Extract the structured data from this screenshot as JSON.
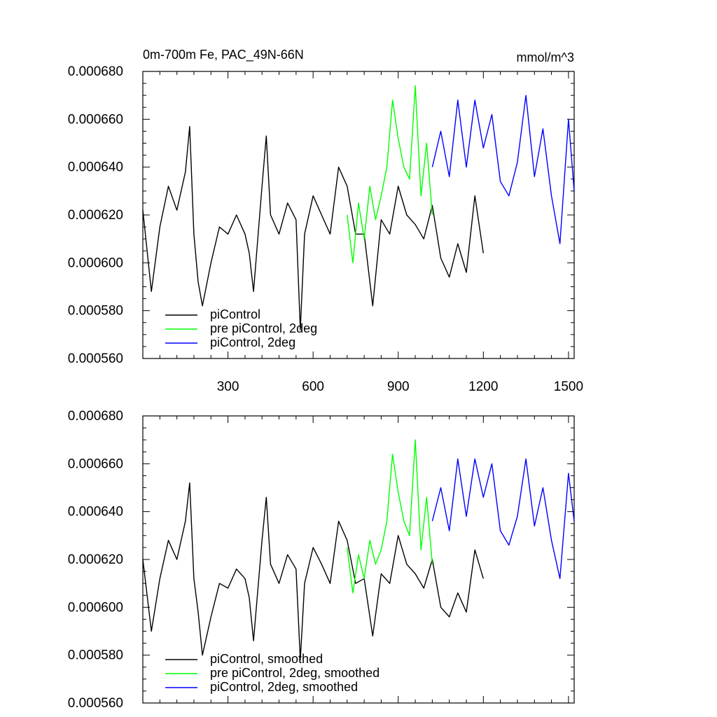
{
  "figure": {
    "title": "0m-700m Fe, PAC_49N-66N",
    "units": "mmol/m^3"
  },
  "colors": {
    "piControl": "#000000",
    "pre_piControl_2deg": "#00ff00",
    "piControl_2deg": "#0000ff"
  },
  "chart_data": [
    {
      "type": "line",
      "title": "0m-700m Fe, PAC_49N-66N",
      "units": "mmol/m^3",
      "xlim": [
        0,
        1520
      ],
      "ylim": [
        0.00056,
        0.00068
      ],
      "xticks": [
        300,
        600,
        900,
        1200,
        1500
      ],
      "xtick_labels": [
        "300",
        "600",
        "900",
        "1200",
        "1500"
      ],
      "yticks": [
        0.00056,
        0.00058,
        0.0006,
        0.00062,
        0.00064,
        0.00066,
        0.00068
      ],
      "ytick_labels": [
        "0.000560",
        "0.000580",
        "0.000600",
        "0.000620",
        "0.000640",
        "0.000660",
        "0.000680"
      ],
      "legend": "bottom-left",
      "series": [
        {
          "name": "piControl",
          "color": "#000000",
          "x": [
            0,
            30,
            60,
            90,
            120,
            150,
            165,
            180,
            195,
            210,
            240,
            270,
            300,
            330,
            360,
            375,
            390,
            420,
            435,
            450,
            480,
            510,
            540,
            555,
            570,
            600,
            630,
            660,
            690,
            720,
            750,
            780,
            810,
            840,
            870,
            900,
            930,
            960,
            990,
            1020,
            1050,
            1080,
            1110,
            1140,
            1170,
            1200
          ],
          "y": [
            0.000622,
            0.000588,
            0.000615,
            0.000632,
            0.000622,
            0.000638,
            0.000657,
            0.000612,
            0.000592,
            0.000582,
            0.0006,
            0.000615,
            0.000612,
            0.00062,
            0.000612,
            0.000604,
            0.000588,
            0.000632,
            0.000653,
            0.00062,
            0.000612,
            0.000625,
            0.000618,
            0.000572,
            0.000612,
            0.000628,
            0.00062,
            0.000612,
            0.00064,
            0.000632,
            0.000612,
            0.000612,
            0.000582,
            0.000618,
            0.000612,
            0.000632,
            0.00062,
            0.000616,
            0.00061,
            0.000624,
            0.000602,
            0.000594,
            0.000608,
            0.000596,
            0.000628,
            0.000604
          ]
        },
        {
          "name": "pre piControl, 2deg",
          "color": "#00ff00",
          "x": [
            720,
            740,
            760,
            780,
            800,
            820,
            840,
            860,
            880,
            900,
            920,
            940,
            960,
            980,
            1000,
            1020
          ],
          "y": [
            0.00062,
            0.0006,
            0.000625,
            0.00061,
            0.000632,
            0.000618,
            0.000628,
            0.00064,
            0.000668,
            0.000652,
            0.00064,
            0.000635,
            0.000674,
            0.000628,
            0.00065,
            0.00062
          ]
        },
        {
          "name": "piControl, 2deg",
          "color": "#0000ff",
          "x": [
            1020,
            1050,
            1080,
            1110,
            1140,
            1170,
            1200,
            1230,
            1260,
            1290,
            1320,
            1350,
            1380,
            1410,
            1440,
            1470,
            1500,
            1520
          ],
          "y": [
            0.00064,
            0.000655,
            0.000636,
            0.000668,
            0.00064,
            0.000668,
            0.000648,
            0.000662,
            0.000634,
            0.000628,
            0.000642,
            0.00067,
            0.000636,
            0.000656,
            0.000628,
            0.000608,
            0.00066,
            0.00063
          ]
        }
      ]
    },
    {
      "type": "line",
      "title": "",
      "xlim": [
        0,
        1520
      ],
      "ylim": [
        0.00056,
        0.00068
      ],
      "xticks": [
        300,
        600,
        900,
        1200,
        1500
      ],
      "yticks": [
        0.00056,
        0.00058,
        0.0006,
        0.00062,
        0.00064,
        0.00066,
        0.00068
      ],
      "ytick_labels": [
        "0.000560",
        "0.000580",
        "0.000600",
        "0.000620",
        "0.000640",
        "0.000660",
        "0.000680"
      ],
      "legend": "bottom-left",
      "series": [
        {
          "name": "piControl, smoothed",
          "color": "#000000",
          "x": [
            0,
            30,
            60,
            90,
            120,
            150,
            165,
            180,
            195,
            210,
            240,
            270,
            300,
            330,
            360,
            375,
            390,
            420,
            435,
            450,
            480,
            510,
            540,
            555,
            570,
            600,
            630,
            660,
            690,
            720,
            750,
            780,
            810,
            840,
            870,
            900,
            930,
            960,
            990,
            1020,
            1050,
            1080,
            1110,
            1140,
            1170,
            1200
          ],
          "y": [
            0.00062,
            0.00059,
            0.000612,
            0.000628,
            0.00062,
            0.000636,
            0.000652,
            0.000612,
            0.000598,
            0.00058,
            0.000596,
            0.00061,
            0.000608,
            0.000616,
            0.000612,
            0.000604,
            0.000586,
            0.000628,
            0.000646,
            0.000618,
            0.00061,
            0.000622,
            0.000616,
            0.000578,
            0.00061,
            0.000625,
            0.000618,
            0.00061,
            0.000636,
            0.000628,
            0.00061,
            0.000612,
            0.000588,
            0.000614,
            0.00061,
            0.00063,
            0.000618,
            0.000614,
            0.000608,
            0.00062,
            0.0006,
            0.000596,
            0.000606,
            0.000598,
            0.000624,
            0.000612
          ]
        },
        {
          "name": "pre piControl, 2deg, smoothed",
          "color": "#00ff00",
          "x": [
            720,
            740,
            760,
            780,
            800,
            820,
            840,
            860,
            880,
            900,
            920,
            940,
            960,
            980,
            1000,
            1020
          ],
          "y": [
            0.000625,
            0.000606,
            0.000622,
            0.000612,
            0.000628,
            0.000618,
            0.000624,
            0.000636,
            0.000664,
            0.000648,
            0.000636,
            0.00063,
            0.00067,
            0.000624,
            0.000646,
            0.000618
          ]
        },
        {
          "name": "piControl, 2deg, smoothed",
          "color": "#0000ff",
          "x": [
            1020,
            1050,
            1080,
            1110,
            1140,
            1170,
            1200,
            1230,
            1260,
            1290,
            1320,
            1350,
            1380,
            1410,
            1440,
            1470,
            1500,
            1520
          ],
          "y": [
            0.000636,
            0.00065,
            0.000632,
            0.000662,
            0.000638,
            0.000662,
            0.000646,
            0.00066,
            0.000632,
            0.000626,
            0.000638,
            0.000662,
            0.000634,
            0.00065,
            0.000628,
            0.000612,
            0.000656,
            0.000636
          ]
        }
      ]
    }
  ]
}
